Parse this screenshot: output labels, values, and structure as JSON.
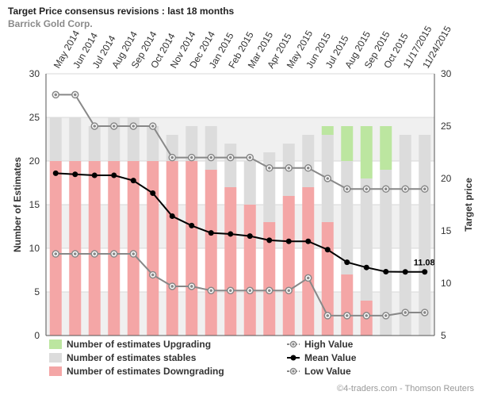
{
  "header": {
    "title": "Target Price consensus revisions : last 18 months",
    "subtitle": "Barrick Gold Corp."
  },
  "footer": {
    "credit": "©4-traders.com - Thomson Reuters"
  },
  "chart_data": {
    "type": "bar",
    "categories": [
      "May 2014",
      "Jun 2014",
      "Jul 2014",
      "Aug 2014",
      "Sep 2014",
      "Oct 2014",
      "Nov 2014",
      "Dec 2014",
      "Jan 2015",
      "Feb 2015",
      "Mar 2015",
      "Apr 2015",
      "May 2015",
      "Jun 2015",
      "Jul 2015",
      "Aug 2015",
      "Sep 2015",
      "Oct 2015",
      "11/17/2015",
      "11/24/2015"
    ],
    "left_axis": {
      "label": "Number of Estimates",
      "min": 0,
      "max": 30,
      "ticks": [
        0,
        5,
        10,
        15,
        20,
        25,
        30
      ]
    },
    "right_axis": {
      "label": "Target price",
      "min": 5,
      "max": 30,
      "ticks": [
        5,
        10,
        15,
        20,
        25,
        30
      ]
    },
    "bar_series": [
      {
        "name": "Number of estimates Downgrading",
        "color": "#f4a6a6",
        "values": [
          20,
          20,
          20,
          20,
          20,
          20,
          20,
          20,
          19,
          17,
          15,
          13,
          16,
          17,
          13,
          7,
          4,
          0,
          0,
          0
        ]
      },
      {
        "name": "Number of estimates stables",
        "color": "#dcdcdc",
        "values": [
          5,
          5,
          4,
          5,
          5,
          4,
          3,
          4,
          5,
          5,
          5,
          8,
          6,
          6,
          10,
          13,
          14,
          19,
          23,
          23
        ]
      },
      {
        "name": "Number of estimates Upgrading",
        "color": "#bce6a0",
        "values": [
          0,
          0,
          0,
          0,
          0,
          0,
          0,
          0,
          0,
          0,
          0,
          0,
          0,
          0,
          1,
          4,
          6,
          5,
          0,
          0
        ]
      }
    ],
    "line_series": [
      {
        "name": "High Value",
        "color": "#888888",
        "values": [
          28,
          28,
          25,
          25,
          25,
          25,
          22,
          22,
          22,
          22,
          22,
          21,
          21,
          21,
          20,
          19,
          19,
          19,
          19,
          19
        ]
      },
      {
        "name": "Mean Value",
        "color": "#000000",
        "values": [
          20.5,
          20.4,
          20.3,
          20.3,
          19.8,
          18.6,
          16.4,
          15.5,
          14.8,
          14.7,
          14.5,
          14.1,
          14.0,
          14.0,
          13.2,
          12.0,
          11.5,
          11.1,
          11.08,
          11.08
        ]
      },
      {
        "name": "Low Value",
        "color": "#888888",
        "values": [
          12.8,
          12.8,
          12.8,
          12.8,
          12.8,
          10.8,
          9.7,
          9.7,
          9.3,
          9.3,
          9.3,
          9.3,
          9.3,
          10.5,
          6.9,
          6.9,
          6.9,
          6.9,
          7.2,
          7.2
        ]
      }
    ],
    "annotation": {
      "series": "Mean Value",
      "index": 19,
      "text": "11.08"
    },
    "legend": {
      "placement": "bottom"
    },
    "grid": true
  }
}
